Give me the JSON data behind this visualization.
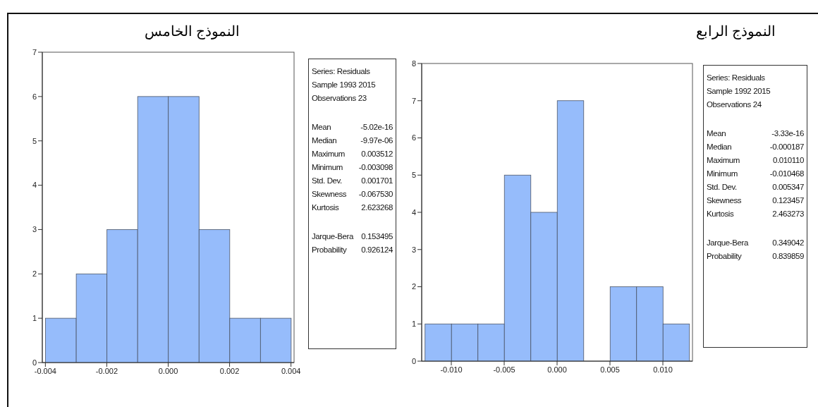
{
  "chart_data": [
    {
      "type": "histogram",
      "title": "النموذج الخامس",
      "color": "#96bcfb",
      "bins": [
        -0.004,
        -0.003,
        -0.002,
        -0.001,
        0,
        0.001,
        0.002,
        0.003,
        0.004
      ],
      "values": [
        1,
        2,
        3,
        6,
        6,
        3,
        1,
        1
      ],
      "xlim": [
        -0.0041,
        0.0041
      ],
      "xticks": [
        {
          "value": -0.004,
          "label": "-0.004"
        },
        {
          "value": -0.002,
          "label": "-0.002"
        },
        {
          "value": 0,
          "label": "0.000"
        },
        {
          "value": 0.002,
          "label": "0.002"
        },
        {
          "value": 0.004,
          "label": "0.004"
        }
      ],
      "ylim": [
        0,
        7
      ],
      "yticks": [
        0,
        1,
        2,
        3,
        4,
        5,
        6,
        7
      ],
      "annotations": [
        "Series: Residuals",
        "Sample 1993 2015",
        "Observations 23",
        "Mean -5.02e-16",
        "Median -9.97e-06",
        "Maximum 0.003512",
        "Minimum -0.003098",
        "Std. Dev. 0.001701",
        "Skewness -0.067530",
        "Kurtosis 2.623268",
        "Jarque-Bera 0.153495",
        "Probability 0.926124"
      ]
    },
    {
      "type": "histogram",
      "title": "النموذج الرابع",
      "color": "#96bcfb",
      "bins": [
        -0.0125,
        -0.01,
        -0.0075,
        -0.005,
        -0.0025,
        0,
        0.0025,
        0.005,
        0.0075,
        0.01,
        0.0125
      ],
      "values": [
        1,
        1,
        1,
        5,
        4,
        7,
        0,
        2,
        2,
        1
      ],
      "xlim": [
        -0.0128,
        0.0128
      ],
      "xticks": [
        {
          "value": -0.01,
          "label": "-0.010"
        },
        {
          "value": -0.005,
          "label": "-0.005"
        },
        {
          "value": 0,
          "label": "0.000"
        },
        {
          "value": 0.005,
          "label": "0.005"
        },
        {
          "value": 0.01,
          "label": "0.010"
        }
      ],
      "ylim": [
        0,
        8
      ],
      "yticks": [
        0,
        1,
        2,
        3,
        4,
        5,
        6,
        7,
        8
      ],
      "annotations": [
        "Series: Residuals",
        "Sample 1992 2015",
        "Observations 24",
        "Mean -3.33e-16",
        "Median -0.000187",
        "Maximum 0.010110",
        "Minimum -0.010468",
        "Std. Dev. 0.005347",
        "Skewness 0.123457",
        "Kurtosis 2.463273",
        "Jarque-Bera 0.349042",
        "Probability 0.839859"
      ]
    }
  ]
}
